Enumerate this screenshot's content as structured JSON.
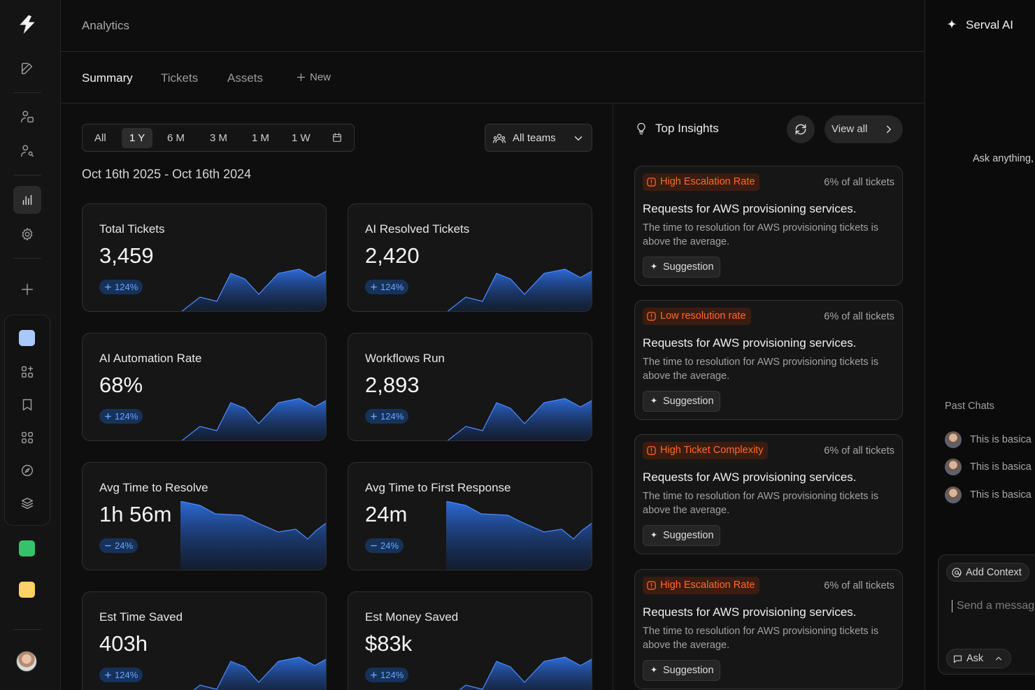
{
  "header": {
    "title": "Analytics"
  },
  "tabs": [
    {
      "label": "Summary"
    },
    {
      "label": "Tickets"
    },
    {
      "label": "Assets"
    }
  ],
  "new_tab": {
    "label": "New"
  },
  "time_range": {
    "options": [
      "All",
      "1 Y",
      "6 M",
      "3 M",
      "1 M",
      "1 W"
    ],
    "selected": "1 Y"
  },
  "team_filter": {
    "label": "All teams"
  },
  "date_range": "Oct 16th 2025 - Oct 16th 2024",
  "metrics": [
    {
      "title": "Total Tickets",
      "value": "3,459",
      "delta": "124%",
      "trend": "up"
    },
    {
      "title": "AI Resolved Tickets",
      "value": "2,420",
      "delta": "124%",
      "trend": "up"
    },
    {
      "title": "AI Automation Rate",
      "value": "68%",
      "delta": "124%",
      "trend": "up"
    },
    {
      "title": "Workflows Run",
      "value": "2,893",
      "delta": "124%",
      "trend": "up"
    },
    {
      "title": "Avg Time to Resolve",
      "value": "1h 56m",
      "delta": "24%",
      "trend": "down"
    },
    {
      "title": "Avg Time to First Response",
      "value": "24m",
      "delta": "24%",
      "trend": "down"
    },
    {
      "title": "Est Time Saved",
      "value": "403h",
      "delta": "124%",
      "trend": "up"
    },
    {
      "title": "Est Money Saved",
      "value": "$83k",
      "delta": "124%",
      "trend": "up"
    }
  ],
  "insights_panel": {
    "title": "Top Insights",
    "view_all_label": "View all"
  },
  "insights": [
    {
      "tag": "High Escalation Rate",
      "share": "6% of all tickets",
      "title": "Requests for AWS provisioning services.",
      "description": "The time to resolution for AWS provisioning tickets is above the average.",
      "action": "Suggestion"
    },
    {
      "tag": "Low resolution rate",
      "share": "6% of all tickets",
      "title": "Requests for AWS provisioning services.",
      "description": "The time to resolution for AWS provisioning tickets is above the average.",
      "action": "Suggestion"
    },
    {
      "tag": "High Ticket Complexity",
      "share": "6% of all tickets",
      "title": "Requests for AWS provisioning services.",
      "description": "The time to resolution for AWS provisioning tickets is above the average.",
      "action": "Suggestion"
    },
    {
      "tag": "High Escalation Rate",
      "share": "6% of all tickets",
      "title": "Requests for AWS provisioning services.",
      "description": "The time to resolution for AWS provisioning tickets is above the average.",
      "action": "Suggestion"
    }
  ],
  "ai_panel": {
    "title": "Serval AI",
    "prompt": "Ask anything,",
    "past_chats_label": "Past Chats",
    "past_chats": [
      "This is basica",
      "This is basica",
      "This is basica"
    ],
    "add_context_label": "Add Context",
    "message_placeholder": "Send a messag",
    "ask_label": "Ask"
  },
  "colors": {
    "accent_blue": "#2f6fe0",
    "badge_text": "#6ba6ff",
    "warning_orange": "#ff6a2a",
    "workspace_squares": [
      "#a9c8ff",
      "#35c26a",
      "#ffd166"
    ]
  }
}
